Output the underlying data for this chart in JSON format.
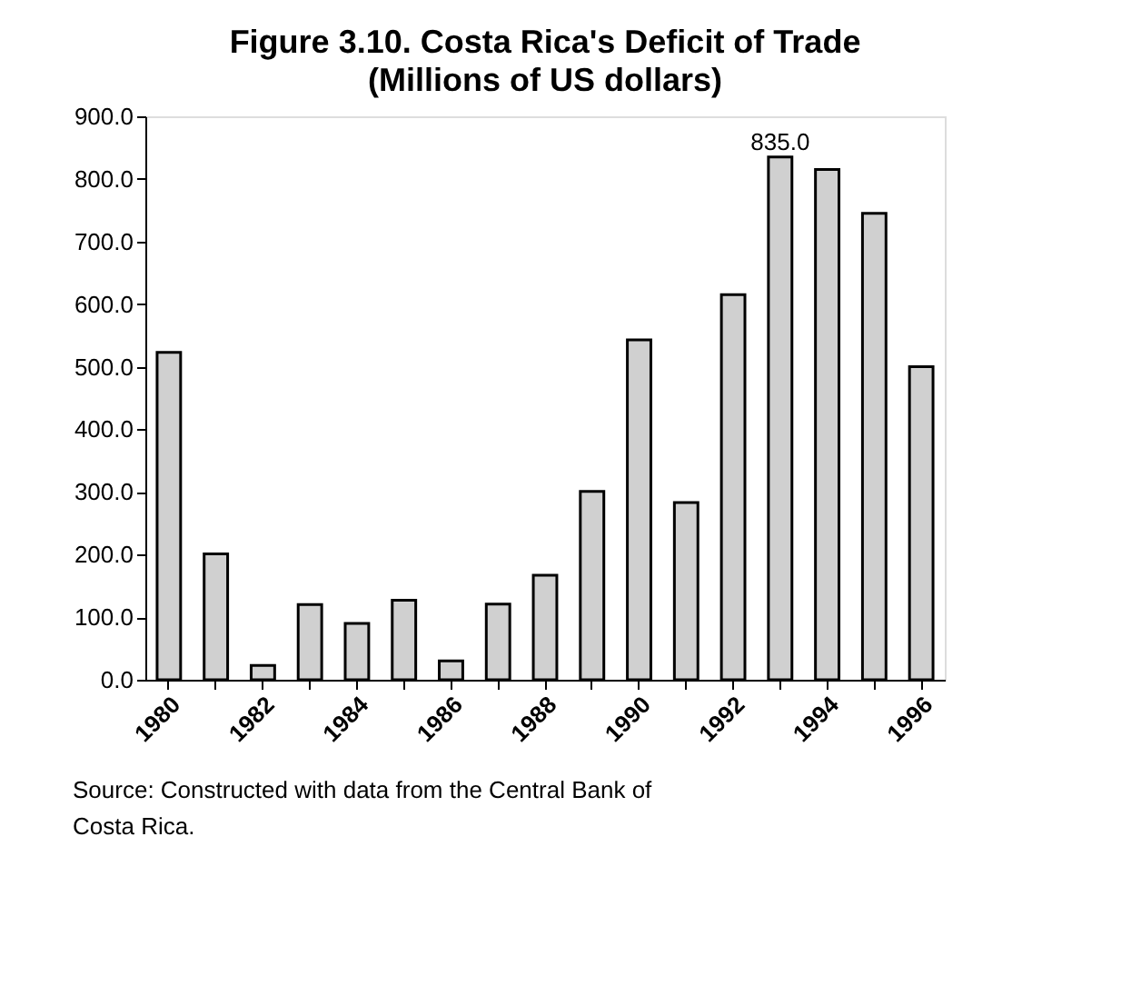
{
  "chart_data": {
    "type": "bar",
    "title": "Figure 3.10. Costa Rica's Deficit of Trade",
    "subtitle": "(Millions of US dollars)",
    "categories": [
      "1980",
      null,
      "1982",
      null,
      "1984",
      null,
      "1986",
      null,
      "1988",
      null,
      "1990",
      null,
      "1992",
      null,
      "1994",
      null,
      "1996"
    ],
    "values": [
      523,
      201,
      23,
      120,
      90,
      127,
      30,
      121,
      167,
      301,
      543,
      283,
      615,
      835,
      815,
      745,
      500
    ],
    "value_labels": [
      null,
      null,
      null,
      null,
      null,
      null,
      null,
      null,
      null,
      null,
      null,
      null,
      null,
      "835.0",
      null,
      null,
      null
    ],
    "color": "#d0d0d0",
    "ylim": [
      0,
      900
    ],
    "yticks": [
      {
        "value": 0,
        "label": "0.0"
      },
      {
        "value": 100,
        "label": "100.0"
      },
      {
        "value": 200,
        "label": "200.0"
      },
      {
        "value": 300,
        "label": "300.0"
      },
      {
        "value": 400,
        "label": "400.0"
      },
      {
        "value": 500,
        "label": "500.0"
      },
      {
        "value": 600,
        "label": "600.0"
      },
      {
        "value": 700,
        "label": "700.0"
      },
      {
        "value": 800,
        "label": "800.0"
      },
      {
        "value": 900,
        "label": "900.0"
      }
    ],
    "grid": false,
    "annotations": [
      "Source: Constructed with data from the Central Bank of Costa Rica."
    ]
  }
}
